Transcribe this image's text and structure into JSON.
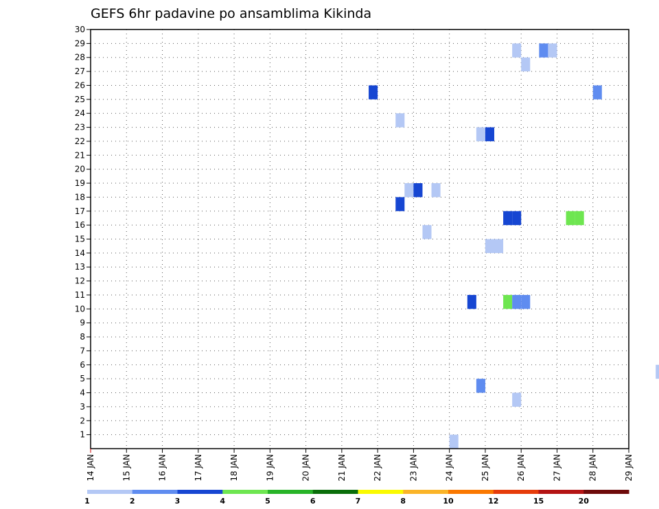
{
  "chart_data": {
    "type": "heatmap",
    "title": "GEFS 6hr padavine po ansamblima Kikinda",
    "xlabel": "",
    "ylabel": "",
    "x_ticks": [
      "14 JAN",
      "15 JAN",
      "16 JAN",
      "17 JAN",
      "18 JAN",
      "19 JAN",
      "20 JAN",
      "21 JAN",
      "22 JAN",
      "23 JAN",
      "24 JAN",
      "25 JAN",
      "26 JAN",
      "27 JAN",
      "28 JAN",
      "29 JAN"
    ],
    "y_ticks": [
      1,
      2,
      3,
      4,
      5,
      6,
      7,
      8,
      9,
      10,
      11,
      12,
      13,
      14,
      15,
      16,
      17,
      18,
      19,
      20,
      21,
      22,
      23,
      24,
      25,
      26,
      27,
      28,
      29,
      30
    ],
    "xlim_days": [
      14,
      29
    ],
    "ylim": [
      0,
      30
    ],
    "grid": true,
    "colorbar": {
      "labels": [
        "1",
        "2",
        "3",
        "4",
        "5",
        "6",
        "7",
        "8",
        "10",
        "12",
        "15",
        "20"
      ],
      "colors": [
        "#b4c8f5",
        "#5f8cf0",
        "#1646d2",
        "#6ee650",
        "#28b428",
        "#0a6e0a",
        "#fafa00",
        "#fab428",
        "#fa7800",
        "#e63c0a",
        "#b41414",
        "#6e0a0a"
      ]
    },
    "cells": [
      {
        "day": 25.75,
        "member": 29,
        "value": 1
      },
      {
        "day": 26.5,
        "member": 29,
        "value": 2
      },
      {
        "day": 26.75,
        "member": 29,
        "value": 1
      },
      {
        "day": 26.0,
        "member": 28,
        "value": 1
      },
      {
        "day": 21.75,
        "member": 26,
        "value": 3
      },
      {
        "day": 28.0,
        "member": 26,
        "value": 2
      },
      {
        "day": 22.5,
        "member": 24,
        "value": 1
      },
      {
        "day": 24.75,
        "member": 23,
        "value": 1
      },
      {
        "day": 25.0,
        "member": 23,
        "value": 3
      },
      {
        "day": 22.75,
        "member": 19,
        "value": 1
      },
      {
        "day": 23.0,
        "member": 19,
        "value": 3
      },
      {
        "day": 23.5,
        "member": 19,
        "value": 1
      },
      {
        "day": 22.5,
        "member": 18,
        "value": 3
      },
      {
        "day": 25.5,
        "member": 17,
        "value": 3
      },
      {
        "day": 25.75,
        "member": 17,
        "value": 3
      },
      {
        "day": 27.25,
        "member": 17,
        "value": 4
      },
      {
        "day": 27.5,
        "member": 17,
        "value": 4
      },
      {
        "day": 23.25,
        "member": 16,
        "value": 1
      },
      {
        "day": 25.0,
        "member": 15,
        "value": 1
      },
      {
        "day": 25.25,
        "member": 15,
        "value": 1
      },
      {
        "day": 24.5,
        "member": 11,
        "value": 3
      },
      {
        "day": 25.5,
        "member": 11,
        "value": 4
      },
      {
        "day": 25.75,
        "member": 11,
        "value": 2
      },
      {
        "day": 26.0,
        "member": 11,
        "value": 2
      },
      {
        "day": 29.75,
        "member": 6,
        "value": 1
      },
      {
        "day": 24.75,
        "member": 5,
        "value": 2
      },
      {
        "day": 25.75,
        "member": 4,
        "value": 1
      },
      {
        "day": 24.0,
        "member": 1,
        "value": 1
      }
    ]
  }
}
